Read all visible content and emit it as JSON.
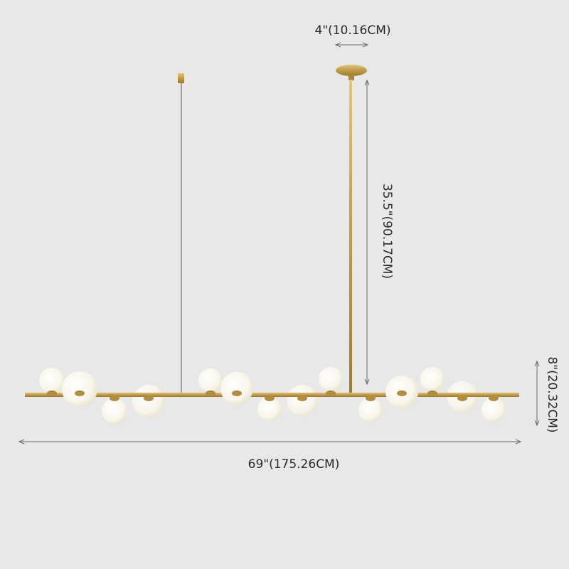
{
  "dimensions": {
    "canopy_width": "4\"(10.16CM)",
    "drop_height": "35.5\"(90.17CM)",
    "fixture_height": "8\"(20.32CM)",
    "total_length": "69\"(175.26CM)"
  },
  "colors": {
    "background": "#e8e8e8",
    "brass": "#c9a552",
    "globe": "#fbf9f2",
    "dimension_line": "#6a6a6a"
  }
}
